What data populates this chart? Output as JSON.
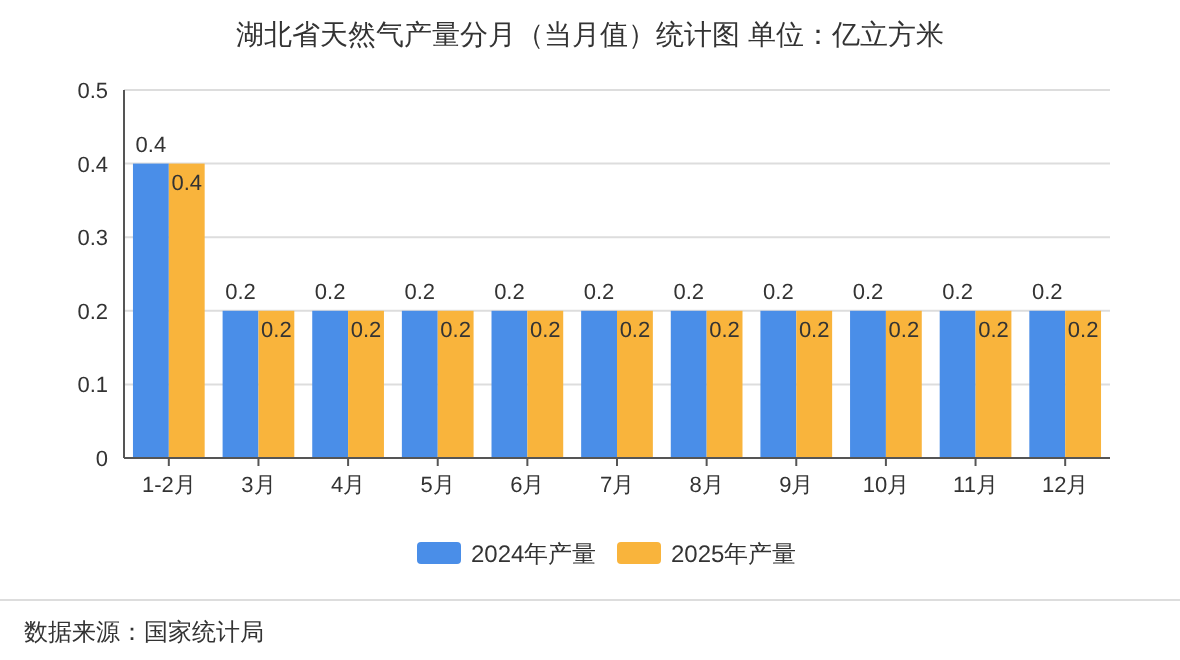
{
  "chart_data": {
    "type": "bar",
    "title": "湖北省天然气产量分月（当月值）统计图 单位：亿立方米",
    "categories": [
      "1-2月",
      "3月",
      "4月",
      "5月",
      "6月",
      "7月",
      "8月",
      "9月",
      "10月",
      "11月",
      "12月"
    ],
    "series": [
      {
        "name": "2024年产量",
        "color": "#4a8ee8",
        "values": [
          0.4,
          0.2,
          0.2,
          0.2,
          0.2,
          0.2,
          0.2,
          0.2,
          0.2,
          0.2,
          0.2
        ]
      },
      {
        "name": "2025年产量",
        "color": "#f9b43c",
        "values": [
          0.4,
          0.2,
          0.2,
          0.2,
          0.2,
          0.2,
          0.2,
          0.2,
          0.2,
          0.2,
          0.2
        ]
      }
    ],
    "ylim": [
      0,
      0.5
    ],
    "yticks": [
      0,
      0.1,
      0.2,
      0.3,
      0.4,
      0.5
    ],
    "grid": "y",
    "legend": "bottom",
    "data_labels": true,
    "annotations": [
      "数据来源：国家统计局"
    ]
  }
}
